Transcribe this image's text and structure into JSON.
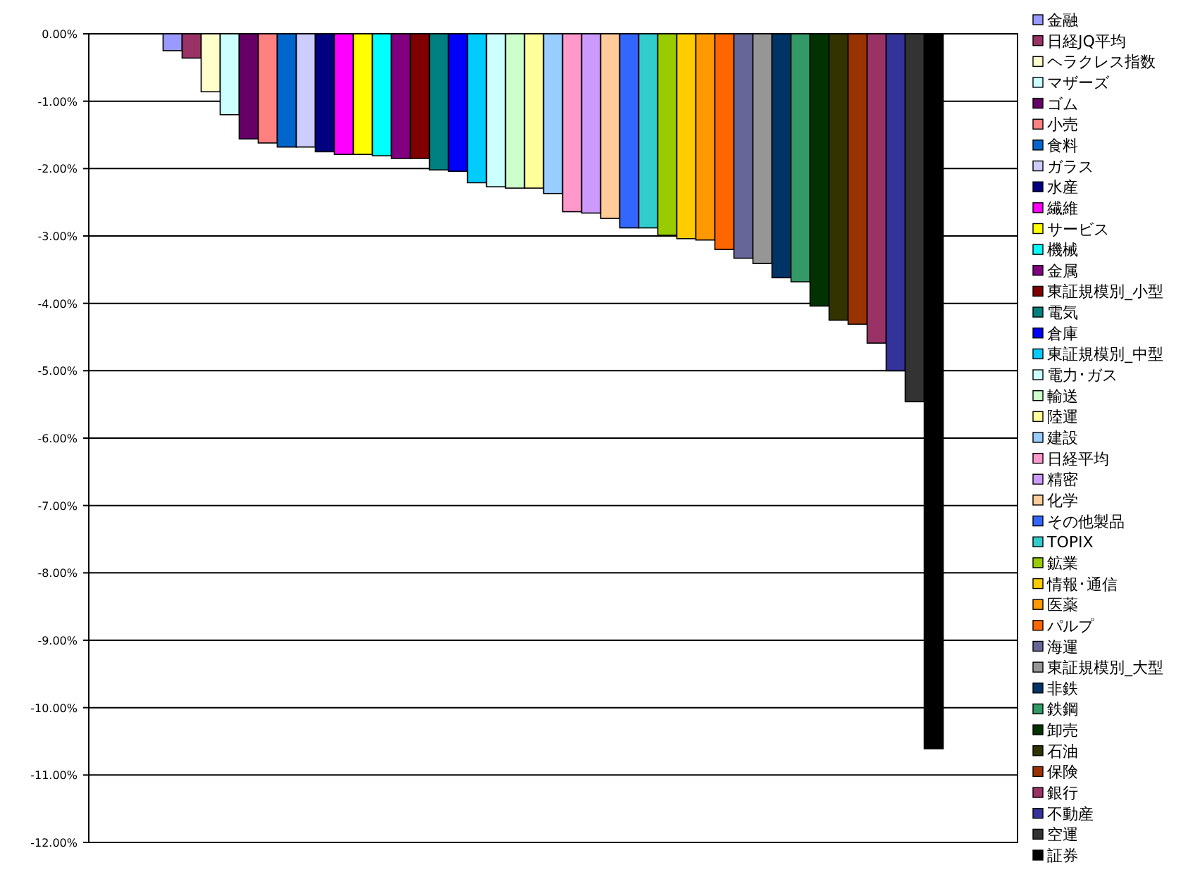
{
  "chart_data": {
    "type": "bar",
    "categories": [
      null
    ],
    "ylim": [
      -12,
      0
    ],
    "grid": "y",
    "legend": "right",
    "tick_labels": "y",
    "yticks": [
      {
        "value": 0,
        "label": "0.00%"
      },
      {
        "value": -1,
        "label": "-1.00%"
      },
      {
        "value": -2,
        "label": "-2.00%"
      },
      {
        "value": -3,
        "label": "-3.00%"
      },
      {
        "value": -4,
        "label": "-4.00%"
      },
      {
        "value": -5,
        "label": "-5.00%"
      },
      {
        "value": -6,
        "label": "-6.00%"
      },
      {
        "value": -7,
        "label": "-7.00%"
      },
      {
        "value": -8,
        "label": "-8.00%"
      },
      {
        "value": -9,
        "label": "-9.00%"
      },
      {
        "value": -10,
        "label": "-10.00%"
      },
      {
        "value": -11,
        "label": "-11.00%"
      },
      {
        "value": -12,
        "label": "-12.00%"
      }
    ],
    "series": [
      {
        "name": "金融",
        "color": "#9999ff",
        "values": [
          -0.25
        ]
      },
      {
        "name": "日経JQ平均",
        "color": "#993366",
        "values": [
          -0.36
        ]
      },
      {
        "name": "ヘラクレス指数",
        "color": "#ffffcc",
        "values": [
          -0.86
        ]
      },
      {
        "name": "マザーズ",
        "color": "#ccffff",
        "values": [
          -1.2
        ]
      },
      {
        "name": "ゴム",
        "color": "#660066",
        "values": [
          -1.56
        ]
      },
      {
        "name": "小売",
        "color": "#ff8080",
        "values": [
          -1.62
        ]
      },
      {
        "name": "食料",
        "color": "#0066cc",
        "values": [
          -1.68
        ]
      },
      {
        "name": "ガラス",
        "color": "#ccccff",
        "values": [
          -1.68
        ]
      },
      {
        "name": "水産",
        "color": "#000080",
        "values": [
          -1.75
        ]
      },
      {
        "name": "繊維",
        "color": "#ff00ff",
        "values": [
          -1.79
        ]
      },
      {
        "name": "サービス",
        "color": "#ffff00",
        "values": [
          -1.79
        ]
      },
      {
        "name": "機械",
        "color": "#00ffff",
        "values": [
          -1.81
        ]
      },
      {
        "name": "金属",
        "color": "#800080",
        "values": [
          -1.85
        ]
      },
      {
        "name": "東証規模別_小型",
        "color": "#800000",
        "values": [
          -1.85
        ]
      },
      {
        "name": "電気",
        "color": "#008080",
        "values": [
          -2.02
        ]
      },
      {
        "name": "倉庫",
        "color": "#0000ff",
        "values": [
          -2.04
        ]
      },
      {
        "name": "東証規模別_中型",
        "color": "#00ccff",
        "values": [
          -2.21
        ]
      },
      {
        "name": "電力･ガス",
        "color": "#ccffff",
        "values": [
          -2.27
        ]
      },
      {
        "name": "輸送",
        "color": "#ccffcc",
        "values": [
          -2.29
        ]
      },
      {
        "name": "陸運",
        "color": "#ffff99",
        "values": [
          -2.29
        ]
      },
      {
        "name": "建設",
        "color": "#99ccff",
        "values": [
          -2.37
        ]
      },
      {
        "name": "日経平均",
        "color": "#ff99cc",
        "values": [
          -2.64
        ]
      },
      {
        "name": "精密",
        "color": "#cc99ff",
        "values": [
          -2.66
        ]
      },
      {
        "name": "化学",
        "color": "#ffcc99",
        "values": [
          -2.74
        ]
      },
      {
        "name": "その他製品",
        "color": "#3366ff",
        "values": [
          -2.88
        ]
      },
      {
        "name": "TOPIX",
        "color": "#33cccc",
        "values": [
          -2.88
        ]
      },
      {
        "name": "鉱業",
        "color": "#99cc00",
        "values": [
          -2.99
        ]
      },
      {
        "name": "情報･通信",
        "color": "#ffcc00",
        "values": [
          -3.04
        ]
      },
      {
        "name": "医薬",
        "color": "#ff9900",
        "values": [
          -3.06
        ]
      },
      {
        "name": "パルプ",
        "color": "#ff6600",
        "values": [
          -3.2
        ]
      },
      {
        "name": "海運",
        "color": "#666699",
        "values": [
          -3.33
        ]
      },
      {
        "name": "東証規模別_大型",
        "color": "#969696",
        "values": [
          -3.41
        ]
      },
      {
        "name": "非鉄",
        "color": "#003366",
        "values": [
          -3.62
        ]
      },
      {
        "name": "鉄鋼",
        "color": "#339966",
        "values": [
          -3.68
        ]
      },
      {
        "name": "卸売",
        "color": "#003300",
        "values": [
          -4.04
        ]
      },
      {
        "name": "石油",
        "color": "#333300",
        "values": [
          -4.25
        ]
      },
      {
        "name": "保険",
        "color": "#993300",
        "values": [
          -4.31
        ]
      },
      {
        "name": "銀行",
        "color": "#993366",
        "values": [
          -4.59
        ]
      },
      {
        "name": "不動産",
        "color": "#333399",
        "values": [
          -5.0
        ]
      },
      {
        "name": "空運",
        "color": "#333333",
        "values": [
          -5.46
        ]
      },
      {
        "name": "証券",
        "color": "#000000",
        "values": [
          -10.61
        ]
      }
    ]
  }
}
